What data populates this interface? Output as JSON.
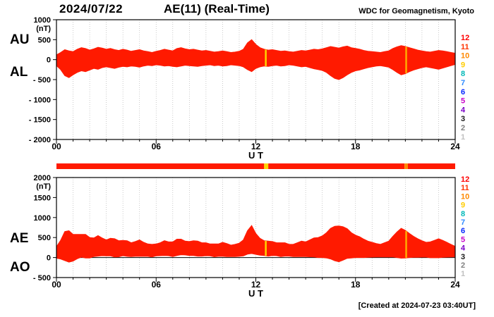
{
  "header": {
    "date": "2024/07/22",
    "title": "AE(11) (Real-Time)",
    "source": "WDC for Geomagnetism, Kyoto"
  },
  "footer": {
    "created": "[Created at 2024-07-23 03:40UT]"
  },
  "station_scale": {
    "description": "number of contributing stations color scale",
    "levels": [
      {
        "label": "12",
        "color": "#ff0000"
      },
      {
        "label": "11",
        "color": "#ff3300"
      },
      {
        "label": "10",
        "color": "#ff8800"
      },
      {
        "label": "9",
        "color": "#ffcc00"
      },
      {
        "label": "8",
        "color": "#00b8b8"
      },
      {
        "label": "7",
        "color": "#2e8bff"
      },
      {
        "label": "6",
        "color": "#0026ff"
      },
      {
        "label": "5",
        "color": "#c800c8"
      },
      {
        "label": "4",
        "color": "#7a00c8"
      },
      {
        "label": "3",
        "color": "#1a1a1a"
      },
      {
        "label": "2",
        "color": "#808080"
      },
      {
        "label": "1",
        "color": "#c0c0c0"
      }
    ]
  },
  "chart_data": {
    "type": "area",
    "title": "AE(11) (Real-Time)",
    "date": "2024/07/22",
    "xlabel": "U T",
    "x_unit": "hours UT",
    "x_start_hour": 0,
    "x_end_hour": 24,
    "x_step_hours": 0.25,
    "xticks": {
      "hours": [
        0,
        6,
        12,
        18,
        24
      ],
      "labels": [
        "00",
        "06",
        "12",
        "18",
        "24"
      ]
    },
    "grid": "vertical dotted line every hour",
    "legend_position": "left axis labels",
    "fill_color": "#ff1a00",
    "markers": [
      {
        "hour": 12.6,
        "color": "#ffd400"
      },
      {
        "hour": 21.05,
        "color": "#ffaa00"
      }
    ],
    "station_bar": {
      "segments": [
        {
          "from": 0,
          "to": 12.5,
          "color": "#ff1a00"
        },
        {
          "from": 12.5,
          "to": 12.75,
          "color": "#ffd400"
        },
        {
          "from": 12.75,
          "to": 20.95,
          "color": "#ff1a00"
        },
        {
          "from": 20.95,
          "to": 21.15,
          "color": "#ff8800"
        },
        {
          "from": 21.15,
          "to": 24,
          "color": "#ff1a00"
        }
      ]
    },
    "panels": [
      {
        "name": "AU-AL",
        "left_labels": [
          "AU",
          "AL"
        ],
        "unit": "(nT)",
        "ylim": [
          -2000,
          1000
        ],
        "yticks": [
          {
            "value": 1000,
            "label": "1000"
          },
          {
            "value": 500,
            "label": "500"
          },
          {
            "value": 0,
            "label": "0"
          },
          {
            "value": -500,
            "label": "- 500"
          },
          {
            "value": -1000,
            "label": "- 1000"
          },
          {
            "value": -1500,
            "label": "- 1500"
          },
          {
            "value": -2000,
            "label": "- 2000"
          }
        ],
        "series": [
          {
            "name": "AU",
            "values": [
              120,
              180,
              250,
              220,
              200,
              260,
              300,
              280,
              240,
              270,
              310,
              290,
              260,
              280,
              250,
              230,
              260,
              240,
              210,
              230,
              250,
              220,
              200,
              180,
              210,
              230,
              260,
              240,
              220,
              280,
              300,
              270,
              250,
              260,
              240,
              220,
              230,
              210,
              190,
              200,
              220,
              200,
              180,
              190,
              210,
              260,
              420,
              500,
              380,
              300,
              260,
              240,
              250,
              230,
              210,
              220,
              200,
              190,
              210,
              230,
              220,
              240,
              260,
              250,
              270,
              300,
              330,
              310,
              290,
              320,
              340,
              300,
              280,
              260,
              230,
              210,
              200,
              190,
              180,
              200,
              220,
              280,
              320,
              350,
              330,
              300,
              270,
              240,
              220,
              200,
              190,
              210,
              230,
              220,
              200,
              180,
              160
            ]
          },
          {
            "name": "AL",
            "values": [
              -150,
              -250,
              -400,
              -450,
              -380,
              -320,
              -280,
              -300,
              -260,
              -220,
              -240,
              -200,
              -180,
              -200,
              -220,
              -190,
              -170,
              -180,
              -160,
              -170,
              -190,
              -160,
              -140,
              -150,
              -130,
              -140,
              -160,
              -150,
              -170,
              -180,
              -160,
              -140,
              -150,
              -160,
              -170,
              -150,
              -140,
              -130,
              -150,
              -140,
              -160,
              -150,
              -130,
              -140,
              -150,
              -180,
              -250,
              -300,
              -220,
              -180,
              -160,
              -170,
              -150,
              -140,
              -160,
              -150,
              -130,
              -140,
              -160,
              -180,
              -170,
              -200,
              -230,
              -250,
              -270,
              -320,
              -400,
              -470,
              -500,
              -450,
              -380,
              -320,
              -280,
              -260,
              -230,
              -200,
              -180,
              -160,
              -150,
              -170,
              -190,
              -250,
              -320,
              -380,
              -350,
              -300,
              -260,
              -230,
              -200,
              -180,
              -200,
              -220,
              -240,
              -210,
              -180,
              -150,
              -120
            ]
          }
        ]
      },
      {
        "name": "AE-AO",
        "left_labels": [
          "AE",
          "AO"
        ],
        "unit": "(nT)",
        "ylim": [
          -500,
          2000
        ],
        "yticks": [
          {
            "value": 2000,
            "label": "2000"
          },
          {
            "value": 1500,
            "label": "1500"
          },
          {
            "value": 1000,
            "label": "1000"
          },
          {
            "value": 500,
            "label": "500"
          },
          {
            "value": 0,
            "label": "0"
          },
          {
            "value": -500,
            "label": "- 500"
          }
        ],
        "series": [
          {
            "name": "AE",
            "values": [
              270,
              430,
              650,
              670,
              580,
              580,
              580,
              580,
              500,
              490,
              550,
              490,
              440,
              480,
              470,
              420,
              430,
              420,
              370,
              400,
              440,
              380,
              340,
              330,
              340,
              370,
              420,
              390,
              390,
              460,
              460,
              410,
              400,
              420,
              410,
              370,
              370,
              340,
              340,
              340,
              380,
              350,
              310,
              330,
              360,
              440,
              670,
              800,
              600,
              480,
              420,
              410,
              400,
              370,
              370,
              370,
              330,
              330,
              370,
              410,
              390,
              440,
              490,
              500,
              540,
              620,
              730,
              780,
              790,
              770,
              720,
              620,
              560,
              520,
              460,
              410,
              380,
              350,
              330,
              370,
              410,
              530,
              640,
              730,
              680,
              600,
              530,
              470,
              420,
              380,
              390,
              430,
              470,
              430,
              380,
              330,
              280
            ]
          },
          {
            "name": "AO",
            "values": [
              -15,
              -35,
              -75,
              -115,
              -90,
              -30,
              10,
              -10,
              -10,
              25,
              35,
              45,
              40,
              40,
              15,
              20,
              45,
              30,
              25,
              30,
              30,
              30,
              30,
              15,
              40,
              45,
              50,
              45,
              25,
              50,
              70,
              65,
              50,
              50,
              35,
              35,
              45,
              40,
              20,
              30,
              30,
              25,
              25,
              25,
              30,
              40,
              85,
              100,
              80,
              60,
              50,
              35,
              50,
              45,
              25,
              35,
              35,
              25,
              25,
              25,
              25,
              20,
              15,
              0,
              0,
              -10,
              -35,
              -80,
              -105,
              -65,
              -20,
              -10,
              0,
              0,
              0,
              5,
              10,
              15,
              15,
              15,
              15,
              15,
              0,
              -15,
              -10,
              0,
              5,
              5,
              10,
              10,
              -5,
              -5,
              -5,
              5,
              10,
              15,
              20
            ]
          }
        ]
      }
    ]
  }
}
